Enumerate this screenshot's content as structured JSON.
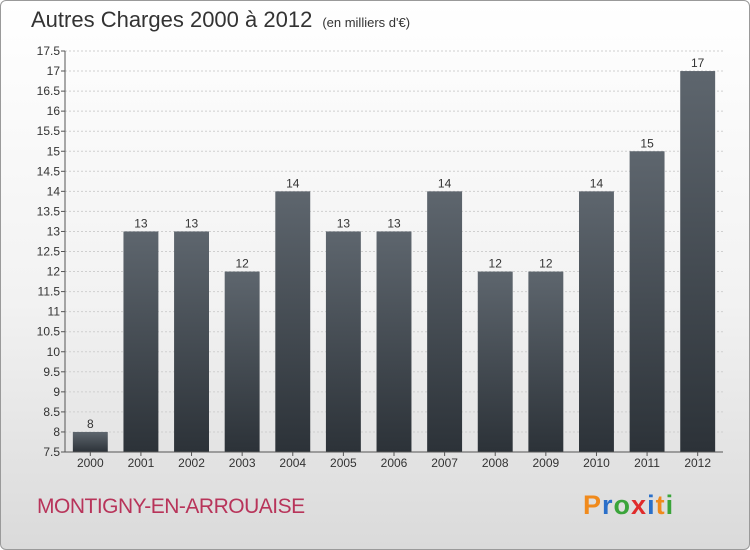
{
  "header": {
    "title": "Autres Charges 2000 à 2012",
    "subtitle": "(en milliers d'€)"
  },
  "footer": {
    "commune": "MONTIGNY-EN-ARROUAISE"
  },
  "logo": {
    "text": "Proxiti",
    "letters": [
      {
        "char": "P",
        "color": "#f08a1c"
      },
      {
        "char": "r",
        "color": "#2a6fc9"
      },
      {
        "char": "o",
        "color": "#3aa43a"
      },
      {
        "char": "x",
        "color": "#e02b2b"
      },
      {
        "char": "i",
        "color": "#2a6fc9"
      },
      {
        "char": "t",
        "color": "#f08a1c"
      },
      {
        "char": "i",
        "color": "#3aa43a"
      }
    ]
  },
  "chart_data": {
    "type": "bar",
    "categories": [
      "2000",
      "2001",
      "2002",
      "2003",
      "2004",
      "2005",
      "2006",
      "2007",
      "2008",
      "2009",
      "2010",
      "2011",
      "2012"
    ],
    "values": [
      8,
      13,
      13,
      12,
      14,
      13,
      13,
      14,
      12,
      12,
      14,
      15,
      17
    ],
    "data_labels": [
      "8",
      "13",
      "13",
      "12",
      "14",
      "13",
      "13",
      "14",
      "12",
      "12",
      "14",
      "15",
      "17"
    ],
    "ylim": [
      7.5,
      17.5
    ],
    "yticks": [
      7.5,
      8,
      8.5,
      9,
      9.5,
      10,
      10.5,
      11,
      11.5,
      12,
      12.5,
      13,
      13.5,
      14,
      14.5,
      15,
      15.5,
      16,
      16.5,
      17,
      17.5
    ],
    "grid": true,
    "bar_color_top": "#5e666e",
    "bar_color_bottom": "#2c3238"
  }
}
